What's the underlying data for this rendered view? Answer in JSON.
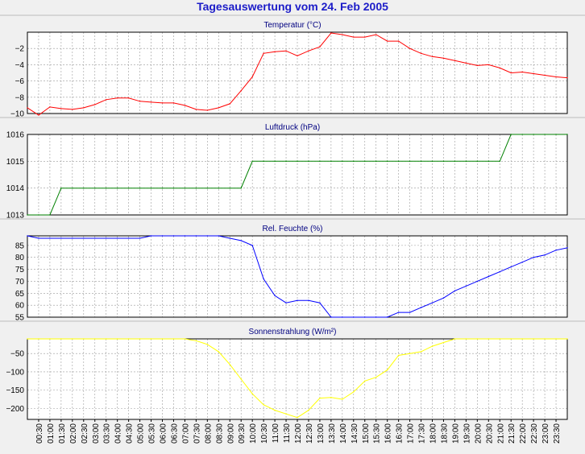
{
  "page_title": "Tagesauswertung vom 24. Feb 2005",
  "colors": {
    "title": "#1c1cc8",
    "background": "#f0f0f0",
    "plot_background": "#ffffff",
    "grid": "#9a9a9a"
  },
  "chart_data": [
    {
      "type": "line",
      "title": "Temperatur (°C)",
      "xlabel": "",
      "ylabel": "",
      "ylim": [
        -10,
        0
      ],
      "yticks": [
        -10,
        -8,
        -6,
        -4,
        -2
      ],
      "grid": true,
      "series": [
        {
          "color": "#ff0000",
          "values": [
            -9.3,
            -10.2,
            -9.2,
            -9.4,
            -9.5,
            -9.3,
            -8.9,
            -8.3,
            -8.1,
            -8.1,
            -8.5,
            -8.6,
            -8.7,
            -8.7,
            -9.0,
            -9.5,
            -9.6,
            -9.3,
            -8.8,
            -7.2,
            -5.5,
            -2.6,
            -2.4,
            -2.3,
            -2.9,
            -2.3,
            -1.8,
            -0.1,
            -0.3,
            -0.6,
            -0.6,
            -0.3,
            -1.1,
            -1.1,
            -2.0,
            -2.6,
            -3.0,
            -3.2,
            -3.5,
            -3.8,
            -4.1,
            -4.0,
            -4.4,
            -5.0,
            -4.9,
            -5.1,
            -5.3,
            -5.5,
            -5.6
          ]
        }
      ]
    },
    {
      "type": "line",
      "title": "Luftdruck (hPa)",
      "xlabel": "",
      "ylabel": "",
      "ylim": [
        1013,
        1016
      ],
      "yticks": [
        1013,
        1014,
        1015,
        1016
      ],
      "grid": true,
      "series": [
        {
          "color": "#008000",
          "values": [
            1013,
            1013,
            1013,
            1014,
            1014,
            1014,
            1014,
            1014,
            1014,
            1014,
            1014,
            1014,
            1014,
            1014,
            1014,
            1014,
            1014,
            1014,
            1014,
            1014,
            1015,
            1015,
            1015,
            1015,
            1015,
            1015,
            1015,
            1015,
            1015,
            1015,
            1015,
            1015,
            1015,
            1015,
            1015,
            1015,
            1015,
            1015,
            1015,
            1015,
            1015,
            1015,
            1015,
            1016,
            1016,
            1016,
            1016,
            1016,
            1016
          ]
        }
      ]
    },
    {
      "type": "line",
      "title": "Rel. Feuchte (%)",
      "xlabel": "",
      "ylabel": "",
      "ylim": [
        55,
        89
      ],
      "yticks": [
        55,
        60,
        65,
        70,
        75,
        80,
        85
      ],
      "grid": true,
      "series": [
        {
          "color": "#0000ff",
          "values": [
            89,
            88,
            88,
            88,
            88,
            88,
            88,
            88,
            88,
            88,
            88,
            89,
            89,
            89,
            89,
            89,
            89,
            89,
            88,
            87,
            85,
            71,
            64,
            61,
            62,
            62,
            61,
            55,
            55,
            55,
            55,
            55,
            55,
            57,
            57,
            59,
            61,
            63,
            66,
            68,
            70,
            72,
            74,
            76,
            78,
            80,
            81,
            83,
            84
          ]
        }
      ]
    },
    {
      "type": "line",
      "title": "Sonnenstrahlung (W/m²)",
      "xlabel": "",
      "ylabel": "",
      "ylim": [
        -230,
        -10
      ],
      "yticks": [
        -200,
        -150,
        -100,
        -50
      ],
      "grid": true,
      "series": [
        {
          "color": "#ffff00",
          "values": [
            -10,
            -10,
            -10,
            -10,
            -10,
            -10,
            -10,
            -10,
            -10,
            -10,
            -10,
            -10,
            -10,
            -10,
            -10,
            -15,
            -25,
            -45,
            -80,
            -120,
            -160,
            -190,
            -205,
            -215,
            -225,
            -205,
            -172,
            -170,
            -175,
            -155,
            -125,
            -115,
            -95,
            -55,
            -50,
            -45,
            -30,
            -20,
            -10,
            -10,
            -10,
            -10,
            -10,
            -10,
            -10,
            -10,
            -10,
            -10,
            -10
          ]
        }
      ]
    }
  ],
  "x_axis": {
    "tick_labels": [
      "00:30",
      "01:00",
      "01:30",
      "02:00",
      "02:30",
      "03:00",
      "03:30",
      "04:00",
      "04:30",
      "05:00",
      "05:30",
      "06:00",
      "06:30",
      "07:00",
      "07:30",
      "08:00",
      "08:30",
      "09:00",
      "09:30",
      "10:00",
      "10:30",
      "11:00",
      "11:30",
      "12:00",
      "12:30",
      "13:00",
      "13:30",
      "14:00",
      "14:30",
      "15:00",
      "15:30",
      "16:00",
      "16:30",
      "17:00",
      "17:30",
      "18:00",
      "18:30",
      "19:00",
      "19:30",
      "20:00",
      "20:30",
      "21:00",
      "21:30",
      "22:00",
      "22:30",
      "23:00",
      "23:30"
    ]
  }
}
